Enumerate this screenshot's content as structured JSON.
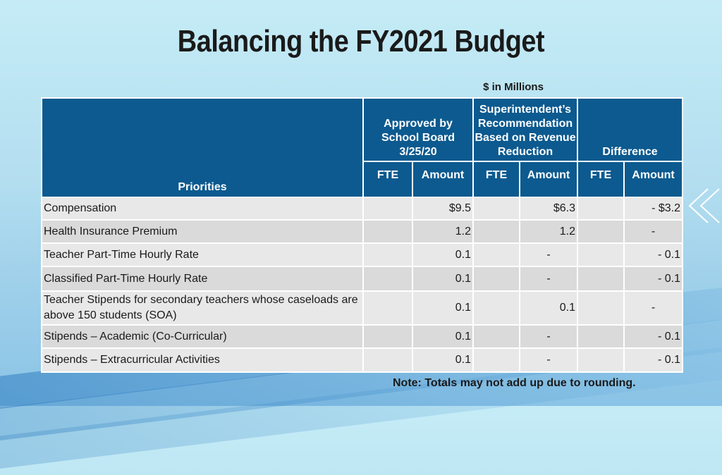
{
  "title": "Balancing the FY2021 Budget",
  "units": "$ in Millions",
  "table": {
    "priorities_header": "Priorities",
    "group_headers": {
      "approved": "Approved by School Board 3/25/20",
      "approved_lines": [
        "Approved by",
        "School Board",
        "3/25/20"
      ],
      "superintendent_lines": [
        "Superintendent’s",
        "Recommendation",
        "Based on Revenue",
        "Reduction"
      ],
      "difference": "Difference"
    },
    "sub_headers": [
      "FTE",
      "Amount",
      "FTE",
      "Amount",
      "FTE",
      "Amount"
    ],
    "rows": [
      {
        "label": "Compensation",
        "approved_fte": "",
        "approved_amount": "$9.5",
        "super_fte": "",
        "super_amount": "$6.3",
        "diff_fte": "",
        "diff_amount": "- $3.2"
      },
      {
        "label": "Health Insurance Premium",
        "approved_fte": "",
        "approved_amount": "1.2",
        "super_fte": "",
        "super_amount": "1.2",
        "diff_fte": "",
        "diff_amount": "-"
      },
      {
        "label": "Teacher Part-Time Hourly Rate",
        "approved_fte": "",
        "approved_amount": "0.1",
        "super_fte": "",
        "super_amount": "-",
        "diff_fte": "",
        "diff_amount": "- 0.1"
      },
      {
        "label": "Classified Part-Time Hourly Rate",
        "approved_fte": "",
        "approved_amount": "0.1",
        "super_fte": "",
        "super_amount": "-",
        "diff_fte": "",
        "diff_amount": "- 0.1"
      },
      {
        "label": "Teacher Stipends for secondary teachers whose caseloads are above 150 students (SOA)",
        "approved_fte": "",
        "approved_amount": "0.1",
        "super_fte": "",
        "super_amount": "0.1",
        "diff_fte": "",
        "diff_amount": "-"
      },
      {
        "label": "Stipends – Academic (Co-Curricular)",
        "approved_fte": "",
        "approved_amount": "0.1",
        "super_fte": "",
        "super_amount": "-",
        "diff_fte": "",
        "diff_amount": "- 0.1"
      },
      {
        "label": "Stipends – Extracurricular Activities",
        "approved_fte": "",
        "approved_amount": "0.1",
        "super_fte": "",
        "super_amount": "-",
        "diff_fte": "",
        "diff_amount": "- 0.1"
      }
    ]
  },
  "note": "Note:  Totals may not add up due to rounding."
}
